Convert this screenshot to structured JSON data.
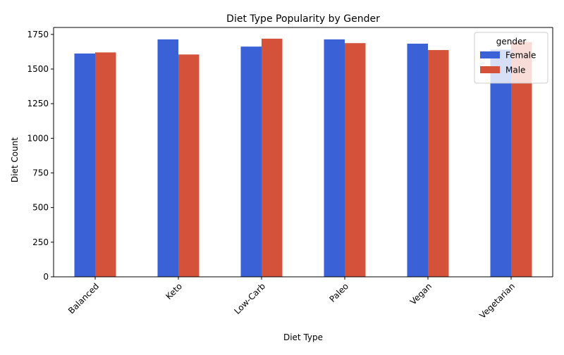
{
  "chart_data": {
    "type": "bar",
    "title": "Diet Type Popularity by Gender",
    "xlabel": "Diet Type",
    "ylabel": "Diet Count",
    "categories": [
      "Balanced",
      "Keto",
      "Low-Carb",
      "Paleo",
      "Vegan",
      "Vegetarian"
    ],
    "series": [
      {
        "name": "Female",
        "color": "#3a62d6",
        "values": [
          1612,
          1714,
          1662,
          1714,
          1683,
          1640
        ]
      },
      {
        "name": "Male",
        "color": "#d4523a",
        "values": [
          1620,
          1605,
          1719,
          1687,
          1637,
          1695
        ]
      }
    ],
    "ylim": [
      0,
      1800
    ],
    "yticks": [
      0,
      250,
      500,
      750,
      1000,
      1250,
      1500,
      1750
    ],
    "legend": {
      "title": "gender",
      "placement": "top-right"
    },
    "grid": false
  }
}
